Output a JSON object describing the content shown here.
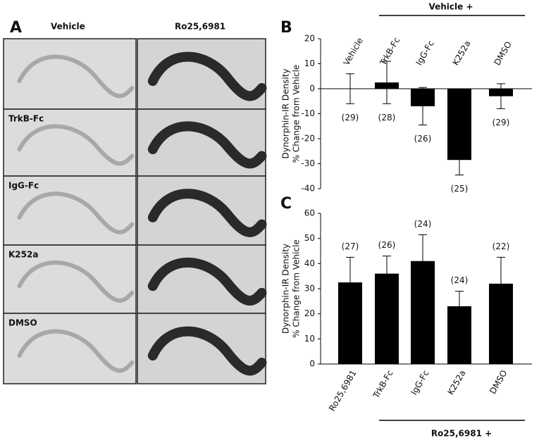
{
  "panel_a": {
    "label": "A",
    "column_labels": [
      "Vehicle",
      "Ro25,6981"
    ],
    "row_labels": [
      "TrkB-Fc",
      "IgG-Fc",
      "K252a",
      "DMSO"
    ]
  },
  "chart_data": [
    {
      "type": "bar",
      "label": "B",
      "group_label": "Vehicle +",
      "y_label": [
        "Dynorphin-IR Density",
        "% Change from Vehicle"
      ],
      "categories": [
        "Vehicle",
        "TrkB-Fc",
        "IgG-Fc",
        "K252a",
        "DMSO"
      ],
      "values": [
        0,
        2.5,
        -7,
        -28.5,
        -3
      ],
      "errors": [
        6,
        8.5,
        7.5,
        6,
        5
      ],
      "n_labels": [
        "(29)",
        "(28)",
        "(26)",
        "(25)",
        "(29)"
      ],
      "color": "#000000",
      "ylim": [
        -40,
        20
      ],
      "yticks": [
        -40,
        -30,
        -20,
        -10,
        0,
        10,
        20
      ],
      "grid": false
    },
    {
      "type": "bar",
      "label": "C",
      "group_label": "Ro25,6981 +",
      "y_label": [
        "Dynorphin-IR Density",
        "% Change from Vehicle"
      ],
      "categories": [
        "Ro25,6981",
        "TrkB-Fc",
        "IgG-Fc",
        "K252a",
        "DMSO"
      ],
      "values": [
        32.5,
        36,
        41,
        23,
        32
      ],
      "errors": [
        10,
        7,
        10.5,
        6,
        10.5
      ],
      "n_labels": [
        "(27)",
        "(26)",
        "(24)",
        "(24)",
        "(22)"
      ],
      "color": "#000000",
      "ylim": [
        0,
        60
      ],
      "yticks": [
        0,
        10,
        20,
        30,
        40,
        50,
        60
      ],
      "grid": false
    }
  ]
}
